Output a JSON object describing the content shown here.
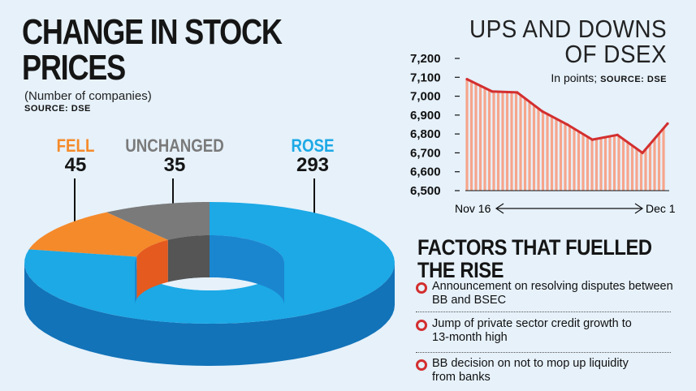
{
  "left": {
    "title_line1": "CHANGE IN STOCK",
    "title_line2": "PRICES",
    "subtitle": "(Number of companies)",
    "source": "SOURCE: DSE"
  },
  "categories": [
    {
      "label": "FELL",
      "value": "45",
      "color": "#f58a2a"
    },
    {
      "label": "UNCHANGED",
      "value": "35",
      "color": "#7a7a7a"
    },
    {
      "label": "ROSE",
      "value": "293",
      "color": "#1ca9e6"
    }
  ],
  "right": {
    "title_line1": "UPS AND DOWNS",
    "title_line2": "OF DSEX",
    "sub_prefix": "In points;",
    "sub_source": "SOURCE: DSE"
  },
  "chart_data": [
    {
      "type": "pie",
      "title": "CHANGE IN STOCK PRICES",
      "categories": [
        "FELL",
        "UNCHANGED",
        "ROSE"
      ],
      "values": [
        45,
        35,
        293
      ]
    },
    {
      "type": "area",
      "title": "UPS AND DOWNS OF DSEX",
      "ylabel": "In points",
      "x_start_label": "Nov 16",
      "x_end_label": "Dec 1",
      "ylim": [
        6500,
        7200
      ],
      "yticks": [
        "7,200",
        "7,100",
        "7,000",
        "6,900",
        "6,800",
        "6,700",
        "6,600",
        "6,500"
      ],
      "y_values": [
        7090,
        7025,
        7020,
        6920,
        6850,
        6770,
        6795,
        6700,
        6855
      ]
    }
  ],
  "factors": {
    "title_line1": "FACTORS THAT FUELLED",
    "title_line2": "THE RISE",
    "items": [
      {
        "line1": "Announcement on resolving disputes between",
        "line2": "BB and BSEC"
      },
      {
        "line1": "Jump of private sector credit growth to",
        "line2": "13-month high"
      },
      {
        "line1": "BB decision on not to mop up liquidity",
        "line2": "from banks"
      }
    ]
  },
  "colors": {
    "background": "#e6f1fa",
    "area_fill": "#f6a58c",
    "line": "#d32f2f",
    "bullet": "#d32f2f"
  }
}
